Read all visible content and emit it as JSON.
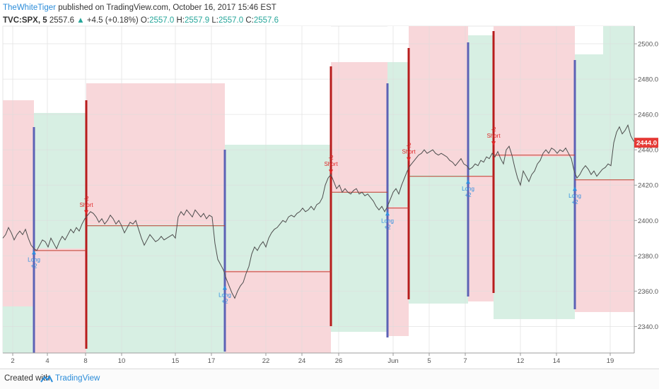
{
  "header": {
    "author": "TheWhiteTiger",
    "published": " published on TradingView.com, October 16, 2017 15:46 EST",
    "symbol": "TVC:SPX, 5",
    "last": "2557.6",
    "arrow": "▲",
    "change": "+4.5 (+0.18%)",
    "o_label": "O:",
    "o_value": "2557.0",
    "h_label": "H:",
    "h_value": "2557.9",
    "l_label": "L:",
    "l_value": "2557.0",
    "c_label": "C:",
    "c_value": "2557.6"
  },
  "footer": {
    "created": "Created with",
    "brand": "TradingView"
  },
  "colors": {
    "red_zone": "#f8d7da",
    "green_zone": "#d7efe3",
    "red_line": "#b71c1c",
    "blue_line": "#5c62b5",
    "long_label": "#2f8fe0",
    "short_label": "#e02424",
    "price_badge": "#e53935"
  },
  "chart_data": {
    "type": "line",
    "y_ticks": [
      "2340.0",
      "2360.0",
      "2380.0",
      "2400.0",
      "2420.0",
      "2440.0",
      "2460.0",
      "2480.0",
      "2500.0"
    ],
    "x_ticks": [
      "2",
      "4",
      "8",
      "10",
      "15",
      "17",
      "22",
      "24",
      "26",
      "Jun",
      "5",
      "7",
      "12",
      "14",
      "19"
    ],
    "ylim": [
      2325,
      2510
    ],
    "last_price_label": "2444.0",
    "series": [
      {
        "values": [
          [
            0,
            2390
          ],
          [
            4,
            2392
          ],
          [
            8,
            2396
          ],
          [
            12,
            2393
          ],
          [
            16,
            2389
          ],
          [
            20,
            2392
          ],
          [
            24,
            2394
          ],
          [
            28,
            2392
          ],
          [
            32,
            2395
          ],
          [
            36,
            2390
          ],
          [
            40,
            2386
          ],
          [
            44,
            2384
          ],
          [
            48,
            2383
          ],
          [
            52,
            2386
          ],
          [
            56,
            2389
          ],
          [
            60,
            2388
          ],
          [
            64,
            2385
          ],
          [
            68,
            2390
          ],
          [
            72,
            2387
          ],
          [
            76,
            2384
          ],
          [
            80,
            2388
          ],
          [
            84,
            2391
          ],
          [
            88,
            2389
          ],
          [
            92,
            2392
          ],
          [
            96,
            2395
          ],
          [
            100,
            2393
          ],
          [
            104,
            2396
          ],
          [
            108,
            2394
          ],
          [
            112,
            2398
          ],
          [
            116,
            2401
          ],
          [
            120,
            2403
          ],
          [
            124,
            2405
          ],
          [
            128,
            2404
          ],
          [
            132,
            2402
          ],
          [
            136,
            2399
          ],
          [
            140,
            2401
          ],
          [
            144,
            2398
          ],
          [
            148,
            2400
          ],
          [
            152,
            2403
          ],
          [
            156,
            2401
          ],
          [
            160,
            2398
          ],
          [
            164,
            2400
          ],
          [
            168,
            2397
          ],
          [
            172,
            2393
          ],
          [
            176,
            2396
          ],
          [
            180,
            2399
          ],
          [
            184,
            2398
          ],
          [
            188,
            2400
          ],
          [
            192,
            2395
          ],
          [
            196,
            2390
          ],
          [
            200,
            2386
          ],
          [
            204,
            2389
          ],
          [
            208,
            2392
          ],
          [
            212,
            2390
          ],
          [
            216,
            2388
          ],
          [
            220,
            2389
          ],
          [
            224,
            2391
          ],
          [
            228,
            2389
          ],
          [
            232,
            2390
          ],
          [
            236,
            2391
          ],
          [
            240,
            2392
          ],
          [
            244,
            2390
          ],
          [
            248,
            2402
          ],
          [
            252,
            2405
          ],
          [
            256,
            2403
          ],
          [
            260,
            2406
          ],
          [
            264,
            2404
          ],
          [
            268,
            2402
          ],
          [
            272,
            2406
          ],
          [
            276,
            2404
          ],
          [
            280,
            2402
          ],
          [
            284,
            2404
          ],
          [
            288,
            2401
          ],
          [
            292,
            2403
          ],
          [
            296,
            2402
          ],
          [
            300,
            2387
          ],
          [
            304,
            2378
          ],
          [
            308,
            2375
          ],
          [
            312,
            2372
          ],
          [
            316,
            2367
          ],
          [
            320,
            2363
          ],
          [
            324,
            2359
          ],
          [
            328,
            2356
          ],
          [
            332,
            2360
          ],
          [
            336,
            2363
          ],
          [
            340,
            2365
          ],
          [
            344,
            2370
          ],
          [
            348,
            2374
          ],
          [
            352,
            2381
          ],
          [
            356,
            2385
          ],
          [
            360,
            2383
          ],
          [
            364,
            2386
          ],
          [
            368,
            2388
          ],
          [
            372,
            2385
          ],
          [
            376,
            2390
          ],
          [
            380,
            2393
          ],
          [
            384,
            2395
          ],
          [
            388,
            2396
          ],
          [
            392,
            2398
          ],
          [
            396,
            2400
          ],
          [
            400,
            2399
          ],
          [
            404,
            2402
          ],
          [
            408,
            2403
          ],
          [
            412,
            2402
          ],
          [
            416,
            2404
          ],
          [
            420,
            2405
          ],
          [
            424,
            2407
          ],
          [
            428,
            2405
          ],
          [
            432,
            2406
          ],
          [
            436,
            2408
          ],
          [
            440,
            2406
          ],
          [
            444,
            2409
          ],
          [
            448,
            2410
          ],
          [
            452,
            2413
          ],
          [
            456,
            2420
          ],
          [
            460,
            2424
          ],
          [
            464,
            2426
          ],
          [
            468,
            2422
          ],
          [
            472,
            2418
          ],
          [
            476,
            2420
          ],
          [
            480,
            2416
          ],
          [
            484,
            2418
          ],
          [
            488,
            2416
          ],
          [
            492,
            2415
          ],
          [
            496,
            2417
          ],
          [
            500,
            2418
          ],
          [
            504,
            2415
          ],
          [
            508,
            2416
          ],
          [
            512,
            2414
          ],
          [
            516,
            2415
          ],
          [
            520,
            2413
          ],
          [
            524,
            2411
          ],
          [
            528,
            2408
          ],
          [
            532,
            2406
          ],
          [
            536,
            2408
          ],
          [
            540,
            2405
          ],
          [
            544,
            2408
          ],
          [
            548,
            2412
          ],
          [
            552,
            2416
          ],
          [
            556,
            2418
          ],
          [
            560,
            2415
          ],
          [
            564,
            2420
          ],
          [
            568,
            2424
          ],
          [
            572,
            2428
          ],
          [
            576,
            2431
          ],
          [
            580,
            2433
          ],
          [
            584,
            2435
          ],
          [
            588,
            2437
          ],
          [
            592,
            2438
          ],
          [
            596,
            2440
          ],
          [
            600,
            2438
          ],
          [
            604,
            2439
          ],
          [
            608,
            2440
          ],
          [
            612,
            2438
          ],
          [
            616,
            2437
          ],
          [
            620,
            2438
          ],
          [
            624,
            2437
          ],
          [
            628,
            2436
          ],
          [
            632,
            2434
          ],
          [
            636,
            2433
          ],
          [
            640,
            2431
          ],
          [
            644,
            2433
          ],
          [
            648,
            2435
          ],
          [
            652,
            2432
          ],
          [
            656,
            2431
          ],
          [
            660,
            2429
          ],
          [
            664,
            2430
          ],
          [
            668,
            2432
          ],
          [
            672,
            2431
          ],
          [
            676,
            2434
          ],
          [
            680,
            2433
          ],
          [
            684,
            2436
          ],
          [
            688,
            2435
          ],
          [
            692,
            2438
          ],
          [
            696,
            2436
          ],
          [
            700,
            2439
          ],
          [
            704,
            2435
          ],
          [
            708,
            2432
          ],
          [
            712,
            2440
          ],
          [
            716,
            2442
          ],
          [
            720,
            2437
          ],
          [
            724,
            2430
          ],
          [
            728,
            2424
          ],
          [
            732,
            2420
          ],
          [
            736,
            2428
          ],
          [
            740,
            2425
          ],
          [
            744,
            2422
          ],
          [
            748,
            2426
          ],
          [
            752,
            2428
          ],
          [
            756,
            2432
          ],
          [
            760,
            2434
          ],
          [
            764,
            2438
          ],
          [
            768,
            2440
          ],
          [
            772,
            2438
          ],
          [
            776,
            2441
          ],
          [
            780,
            2440
          ],
          [
            784,
            2438
          ],
          [
            788,
            2440
          ],
          [
            792,
            2439
          ],
          [
            796,
            2441
          ],
          [
            800,
            2438
          ],
          [
            804,
            2435
          ],
          [
            808,
            2428
          ],
          [
            812,
            2424
          ],
          [
            816,
            2426
          ],
          [
            820,
            2429
          ],
          [
            824,
            2431
          ],
          [
            828,
            2429
          ],
          [
            832,
            2426
          ],
          [
            836,
            2428
          ],
          [
            840,
            2425
          ],
          [
            844,
            2427
          ],
          [
            848,
            2429
          ],
          [
            852,
            2430
          ],
          [
            856,
            2432
          ],
          [
            860,
            2431
          ],
          [
            864,
            2444
          ],
          [
            868,
            2450
          ],
          [
            872,
            2453
          ],
          [
            876,
            2449
          ],
          [
            880,
            2451
          ],
          [
            884,
            2454
          ],
          [
            888,
            2448
          ],
          [
            892,
            2445
          ],
          [
            896,
            2444
          ]
        ]
      }
    ]
  }
}
